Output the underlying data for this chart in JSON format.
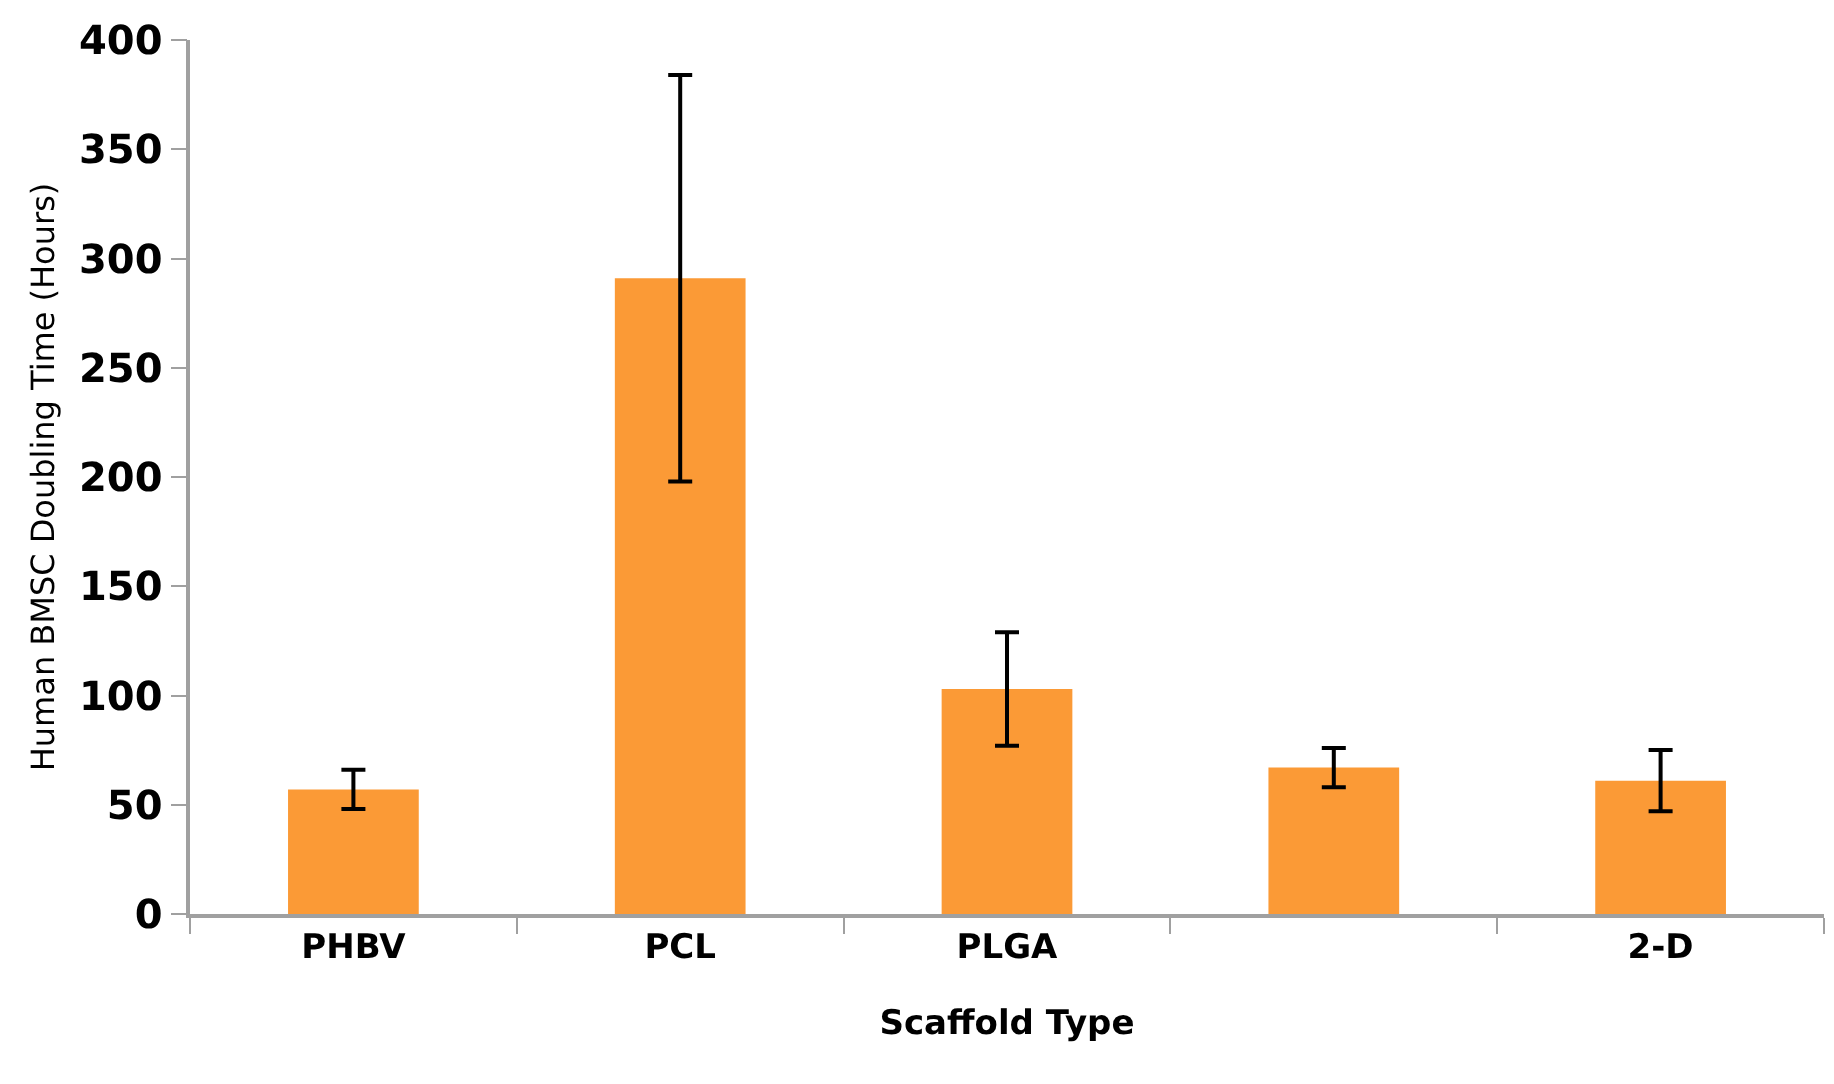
{
  "chart_data": {
    "type": "bar",
    "xlabel": "Scaffold Type",
    "ylabel": "Human BMSC Doubling Time (Hours)",
    "categories": [
      "PHBV",
      "PCL",
      "PLGA",
      null,
      "2-D"
    ],
    "values": [
      57,
      291,
      103,
      67,
      61
    ],
    "errors": [
      9,
      93,
      26,
      9,
      14
    ],
    "color": "#fb9a36",
    "ylim": [
      0,
      400
    ],
    "yticks": [
      0,
      50,
      100,
      150,
      200,
      250,
      300,
      350,
      400
    ]
  }
}
